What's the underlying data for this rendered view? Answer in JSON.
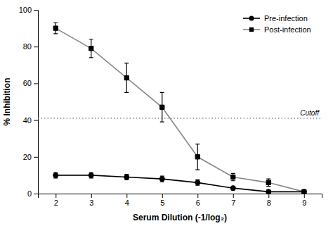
{
  "chart_data": {
    "type": "line",
    "x": [
      2,
      3,
      4,
      5,
      6,
      7,
      8,
      9
    ],
    "series": [
      {
        "name": "Pre-infection",
        "color": "#000000",
        "marker": "circle",
        "values": [
          10,
          10,
          9,
          8,
          6,
          3,
          1,
          1
        ],
        "errors": [
          1.5,
          1.5,
          1.5,
          1.5,
          1.5,
          1.0,
          1.0,
          0.5
        ]
      },
      {
        "name": "Post-infection",
        "color": "#888888",
        "marker": "square",
        "values": [
          90,
          79,
          63,
          47,
          20,
          9,
          6,
          1
        ],
        "errors": [
          3,
          5,
          8,
          8,
          7,
          2,
          2,
          1
        ]
      }
    ],
    "reference_lines": [
      {
        "y": 41,
        "label": "Cutoff",
        "color": "#8888aa",
        "line_style": "dotted"
      }
    ],
    "xlabel": "Serum Dilution (-1/log₂)",
    "ylabel": "% Inhibition",
    "xlim": [
      1.5,
      9.5
    ],
    "ylim": [
      0,
      100
    ],
    "xticks": [
      2,
      3,
      4,
      5,
      6,
      7,
      8,
      9
    ],
    "yticks": [
      0,
      20,
      40,
      60,
      80,
      100
    ],
    "grid": false,
    "legend": "upper right"
  }
}
